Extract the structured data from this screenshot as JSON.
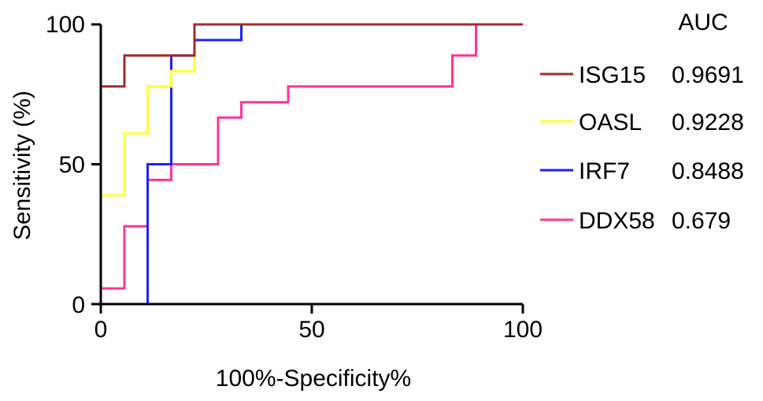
{
  "chart_data": {
    "type": "line",
    "xlabel": "100%-Specificity%",
    "ylabel": "Sensitivity (%)",
    "xlim": [
      0,
      100
    ],
    "ylim": [
      0,
      100
    ],
    "xticks": [
      "0",
      "50",
      "100"
    ],
    "yticks": [
      "0",
      "50",
      "100"
    ],
    "grid": false,
    "legend": {
      "placement": "right",
      "header": "AUC",
      "entries": [
        {
          "name": "ISG15",
          "value": "0.9691"
        },
        {
          "name": "OASL",
          "value": "0.9228"
        },
        {
          "name": "IRF7",
          "value": "0.8488"
        },
        {
          "name": "DDX58",
          "value": "0.679"
        }
      ]
    },
    "series": [
      {
        "name": "ISG15",
        "color": "#a52a2a",
        "points": [
          [
            0,
            0
          ],
          [
            0,
            38.9
          ],
          [
            0,
            77.8
          ],
          [
            5.6,
            77.8
          ],
          [
            5.6,
            88.9
          ],
          [
            16.7,
            88.9
          ],
          [
            22.2,
            88.9
          ],
          [
            22.2,
            100
          ],
          [
            100,
            100
          ]
        ]
      },
      {
        "name": "OASL",
        "color": "#ffff33",
        "points": [
          [
            0,
            0
          ],
          [
            0,
            5.6
          ],
          [
            0,
            38.9
          ],
          [
            5.6,
            38.9
          ],
          [
            5.6,
            61.1
          ],
          [
            11.1,
            61.1
          ],
          [
            11.1,
            77.8
          ],
          [
            16.7,
            77.8
          ],
          [
            16.7,
            83.3
          ],
          [
            22.2,
            83.3
          ],
          [
            22.2,
            100
          ],
          [
            100,
            100
          ]
        ]
      },
      {
        "name": "IRF7",
        "color": "#1f1fff",
        "points": [
          [
            0,
            0
          ],
          [
            11.1,
            0
          ],
          [
            11.1,
            50
          ],
          [
            16.7,
            50
          ],
          [
            16.7,
            88.9
          ],
          [
            22.2,
            88.9
          ],
          [
            22.2,
            94.4
          ],
          [
            33.3,
            94.4
          ],
          [
            33.3,
            100
          ],
          [
            100,
            100
          ]
        ]
      },
      {
        "name": "DDX58",
        "color": "#ff3399",
        "points": [
          [
            0,
            0
          ],
          [
            0,
            5.6
          ],
          [
            5.6,
            5.6
          ],
          [
            5.6,
            27.8
          ],
          [
            11.1,
            27.8
          ],
          [
            11.1,
            44.4
          ],
          [
            16.7,
            44.4
          ],
          [
            16.7,
            50
          ],
          [
            27.8,
            50
          ],
          [
            27.8,
            66.7
          ],
          [
            33.3,
            66.7
          ],
          [
            33.3,
            72.2
          ],
          [
            44.4,
            72.2
          ],
          [
            44.4,
            77.8
          ],
          [
            83.3,
            77.8
          ],
          [
            83.3,
            88.9
          ],
          [
            88.9,
            88.9
          ],
          [
            88.9,
            100
          ],
          [
            100,
            100
          ]
        ]
      }
    ]
  }
}
